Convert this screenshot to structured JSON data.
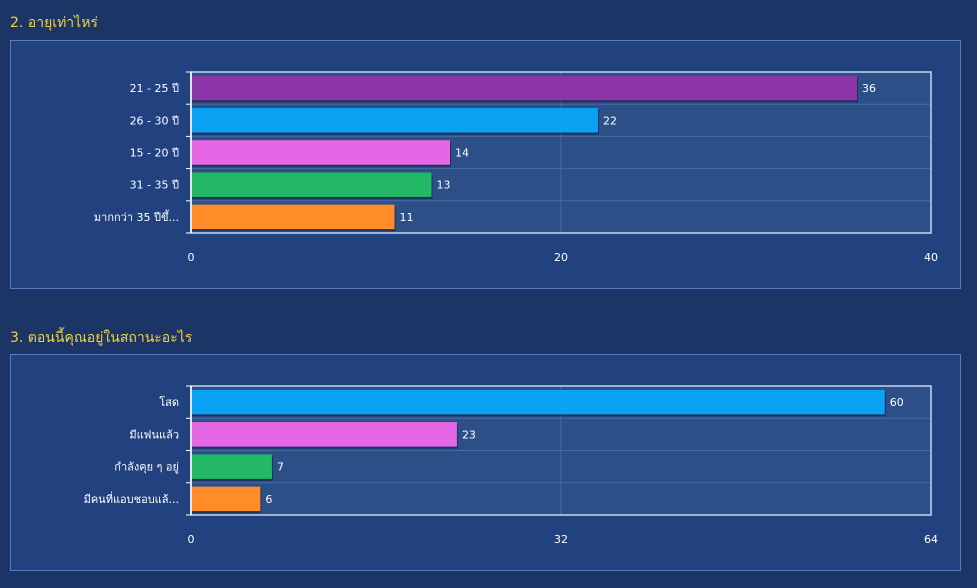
{
  "questions": [
    {
      "title": "2. อายุเท่าไหร่",
      "chart_data": {
        "type": "bar",
        "orientation": "horizontal",
        "categories": [
          "21 - 25 ปี",
          "26 - 30 ปี",
          "15 - 20 ปี",
          "31 - 35 ปี",
          "มากกว่า 35 ปีขึ้..."
        ],
        "values": [
          36,
          22,
          14,
          13,
          11
        ],
        "xlim": [
          0,
          40
        ],
        "ticks": [
          "0",
          "20",
          "40"
        ],
        "bar_colors": [
          "#8b35a8",
          "#0aa3f4",
          "#e667e6",
          "#22b865",
          "#ff8c28"
        ],
        "grid": true
      }
    },
    {
      "title": "3. ตอนนี้คุณอยู่ในสถานะอะไร",
      "chart_data": {
        "type": "bar",
        "orientation": "horizontal",
        "categories": [
          "โสด",
          "มีแฟนแล้ว",
          "กำลังคุย ๆ อยู่",
          "มีคนที่แอบชอบแล้..."
        ],
        "values": [
          60,
          23,
          7,
          6
        ],
        "xlim": [
          0,
          64
        ],
        "ticks": [
          "0",
          "32",
          "64"
        ],
        "bar_colors": [
          "#0aa3f4",
          "#e667e6",
          "#22b865",
          "#ff8c28"
        ],
        "grid": true
      }
    }
  ]
}
